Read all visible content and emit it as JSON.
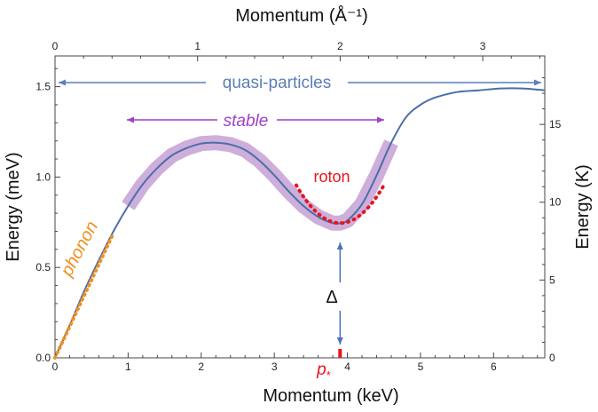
{
  "chart_data": {
    "type": "line",
    "xlabel_bottom": "Momentum (keV)",
    "xlabel_top": "Momentum (Å⁻¹)",
    "ylabel_left": "Energy (meV)",
    "ylabel_right": "Energy (K)",
    "xlim_keV": [
      0,
      6.7
    ],
    "ylim_meV": [
      0,
      1.67
    ],
    "ylim_K": [
      0,
      19.4
    ],
    "x_ticks_keV": [
      "0",
      "1",
      "2",
      "3",
      "4",
      "5",
      "6"
    ],
    "x_ticks_invA": [
      "0",
      "1",
      "2",
      "3"
    ],
    "x_ticks_invA_values": [
      0,
      1,
      2,
      3
    ],
    "y_ticks_meV": [
      "0.0",
      "0.5",
      "1.0",
      "1.5"
    ],
    "y_ticks_K": [
      "0",
      "5",
      "10",
      "15"
    ],
    "series": [
      {
        "x": [
          0,
          0.2,
          0.4,
          0.6,
          0.8,
          1.0,
          1.2,
          1.4,
          1.6,
          1.8,
          2.0,
          2.2,
          2.4,
          2.6,
          2.8,
          3.0,
          3.2,
          3.4,
          3.6,
          3.8,
          3.9,
          4.0,
          4.2,
          4.4,
          4.6,
          4.8,
          5.0,
          5.2,
          5.5,
          5.8,
          6.1,
          6.4,
          6.7
        ],
        "y": [
          0,
          0.18,
          0.37,
          0.54,
          0.7,
          0.84,
          0.96,
          1.05,
          1.12,
          1.16,
          1.185,
          1.19,
          1.18,
          1.15,
          1.09,
          1.01,
          0.92,
          0.84,
          0.78,
          0.745,
          0.745,
          0.76,
          0.85,
          1.01,
          1.19,
          1.33,
          1.4,
          1.44,
          1.47,
          1.48,
          1.49,
          1.49,
          1.48
        ]
      }
    ],
    "phonon_fit": {
      "x": [
        0,
        0.8
      ],
      "y": [
        0,
        0.69
      ]
    },
    "roton_fit": {
      "x": [
        3.3,
        4.5
      ],
      "y": [
        0.955,
        0.945
      ],
      "min": [
        3.9,
        0.745
      ]
    },
    "stable_band": {
      "x": [
        1.0,
        4.6
      ]
    },
    "annotations": {
      "phonon": "phonon",
      "roton": "roton",
      "stable": "stable",
      "quasi": "quasi-particles",
      "delta": "Δ",
      "p_star": "p",
      "p_star_sub": "*"
    },
    "colors": {
      "curve": "#4a6fa8",
      "band": "#c6a0d4",
      "phonon": "#f0901e",
      "roton": "#e8141e",
      "stable": "#a040c8",
      "quasi": "#5b7fb8",
      "arrow": "#4a72b8"
    },
    "grid": false
  }
}
